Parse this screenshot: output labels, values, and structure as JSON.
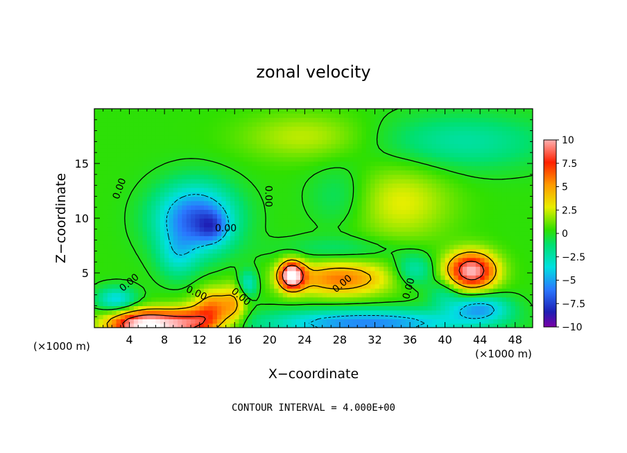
{
  "chart_data": {
    "type": "heatmap",
    "title": "zonal velocity",
    "xlabel": "X−coordinate",
    "ylabel": "Z−coordinate",
    "x_unit_left": "(×1000 m)",
    "x_unit_right": "(×1000 m)",
    "xlim": [
      0,
      50
    ],
    "ylim": [
      0,
      20
    ],
    "x_ticks": [
      4,
      8,
      12,
      16,
      20,
      24,
      28,
      32,
      36,
      40,
      44,
      48
    ],
    "x_tick_labels": [
      "4",
      "8",
      "12",
      "16",
      "20",
      "24",
      "28",
      "32",
      "36",
      "40",
      "44",
      "48"
    ],
    "y_ticks": [
      5,
      10,
      15
    ],
    "y_tick_labels": [
      "5",
      "10",
      "15"
    ],
    "colorbar": {
      "min": -10,
      "max": 10,
      "ticks": [
        10,
        7.5,
        5,
        2.5,
        0,
        -2.5,
        -5,
        -7.5,
        -10
      ],
      "tick_labels": [
        "10",
        "7.5",
        "5",
        "2.5",
        "0",
        "−2.5",
        "−5",
        "−7.5",
        "−10"
      ]
    },
    "contour_labels": [
      "0.00",
      "0.00",
      "0.00",
      "0.00",
      "0.00",
      "0.00",
      "0.00",
      "0.00"
    ],
    "contour_interval_text": "CONTOUR INTERVAL = 4.000E+00",
    "features": [
      {
        "x": 6,
        "z": 0.3,
        "sx": 3.0,
        "sz": 0.9,
        "value": 12
      },
      {
        "x": 11.5,
        "z": 0.5,
        "sx": 2.2,
        "sz": 1.0,
        "value": 6
      },
      {
        "x": 13.5,
        "z": 2.0,
        "sx": 1.4,
        "sz": 1.2,
        "value": 4.5
      },
      {
        "x": 16,
        "z": 2.2,
        "sx": 1.0,
        "sz": 1.3,
        "value": 3.5
      },
      {
        "x": 2.5,
        "z": 2.6,
        "sx": 1.6,
        "sz": 0.8,
        "value": -4
      },
      {
        "x": 17.5,
        "z": 4.0,
        "sx": 0.8,
        "sz": 0.9,
        "value": -3.5
      },
      {
        "x": 11.5,
        "z": 10.0,
        "sx": 3.2,
        "sz": 2.2,
        "value": -7
      },
      {
        "x": 13.5,
        "z": 9.2,
        "sx": 1.2,
        "sz": 1.0,
        "value": -3
      },
      {
        "x": 9.5,
        "z": 6.5,
        "sx": 1.6,
        "sz": 1.5,
        "value": -2.5
      },
      {
        "x": 22.5,
        "z": 4.8,
        "sx": 1.0,
        "sz": 0.9,
        "value": 11
      },
      {
        "x": 28,
        "z": 4.5,
        "sx": 4.0,
        "sz": 1.1,
        "value": 5.5
      },
      {
        "x": 31,
        "z": 0.4,
        "sx": 8.0,
        "sz": 0.9,
        "value": -6
      },
      {
        "x": 43,
        "z": 5.2,
        "sx": 2.0,
        "sz": 1.2,
        "value": 10
      },
      {
        "x": 44,
        "z": 1.8,
        "sx": 2.4,
        "sz": 0.9,
        "value": -5
      },
      {
        "x": 36.5,
        "z": 5.3,
        "sx": 1.6,
        "sz": 1.0,
        "value": -3
      },
      {
        "x": 40,
        "z": 3.2,
        "sx": 1.4,
        "sz": 1.0,
        "value": -2
      },
      {
        "x": 28,
        "z": 7.2,
        "sx": 5.0,
        "sz": 0.8,
        "value": -1.5
      },
      {
        "x": 35,
        "z": 11.5,
        "sx": 4.0,
        "sz": 2.5,
        "value": 2.5
      },
      {
        "x": 42,
        "z": 17.0,
        "sx": 7.0,
        "sz": 1.8,
        "value": -2.5
      },
      {
        "x": 24,
        "z": 17.5,
        "sx": 5.0,
        "sz": 1.5,
        "value": 2
      },
      {
        "x": 28,
        "z": 12.0,
        "sx": 2.5,
        "sz": 2.0,
        "value": -1.5
      }
    ]
  }
}
